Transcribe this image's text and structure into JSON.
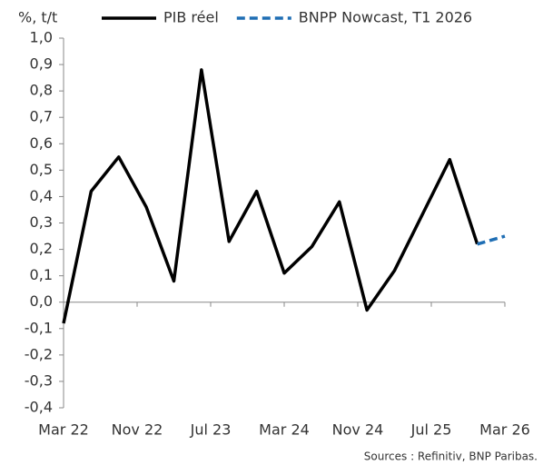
{
  "chart_data": {
    "type": "line",
    "y_label": "%, t/t",
    "source": "Sources : Refinitiv, BNP Paribas.",
    "x": [
      "2022-03",
      "2022-06",
      "2022-09",
      "2022-12",
      "2023-03",
      "2023-06",
      "2023-09",
      "2023-12",
      "2024-03",
      "2024-06",
      "2024-09",
      "2024-12",
      "2025-03",
      "2025-06",
      "2025-09",
      "2025-12",
      "2026-03"
    ],
    "xlim": [
      "2022-03",
      "2026-03"
    ],
    "xticks": [
      {
        "value": "2022-03",
        "label": "Mar 22"
      },
      {
        "value": "2022-11",
        "label": "Nov 22"
      },
      {
        "value": "2023-07",
        "label": "Jul 23"
      },
      {
        "value": "2024-03",
        "label": "Mar 24"
      },
      {
        "value": "2024-11",
        "label": "Nov 24"
      },
      {
        "value": "2025-07",
        "label": "Jul 25"
      },
      {
        "value": "2026-03",
        "label": "Mar 26"
      }
    ],
    "series": [
      {
        "name": "PIB réel",
        "color": "#000000",
        "dash": false,
        "values": [
          -0.08,
          0.42,
          0.55,
          0.36,
          0.08,
          0.88,
          0.23,
          0.42,
          0.11,
          0.21,
          0.38,
          -0.03,
          0.12,
          0.33,
          0.54,
          0.22,
          null
        ]
      },
      {
        "name": "BNPP Nowcast, T1 2026",
        "color": "#1f6eb4",
        "dash": true,
        "values": [
          null,
          null,
          null,
          null,
          null,
          null,
          null,
          null,
          null,
          null,
          null,
          null,
          null,
          null,
          null,
          0.22,
          0.25
        ]
      }
    ],
    "ylim": [
      -0.4,
      1.0
    ],
    "yticks": [
      {
        "value": -0.4,
        "label": "-0,4"
      },
      {
        "value": -0.3,
        "label": "-0,3"
      },
      {
        "value": -0.2,
        "label": "-0,2"
      },
      {
        "value": -0.1,
        "label": "-0,1"
      },
      {
        "value": 0,
        "label": "0,0"
      },
      {
        "value": 0.1,
        "label": "0,1"
      },
      {
        "value": 0.2,
        "label": "0,2"
      },
      {
        "value": 0.3,
        "label": "0,3"
      },
      {
        "value": 0.4,
        "label": "0,4"
      },
      {
        "value": 0.5,
        "label": "0,5"
      },
      {
        "value": 0.6,
        "label": "0,6"
      },
      {
        "value": 0.7,
        "label": "0,7"
      },
      {
        "value": 0.8,
        "label": "0,8"
      },
      {
        "value": 0.9,
        "label": "0,9"
      },
      {
        "value": 1.0,
        "label": "1,0"
      }
    ]
  }
}
